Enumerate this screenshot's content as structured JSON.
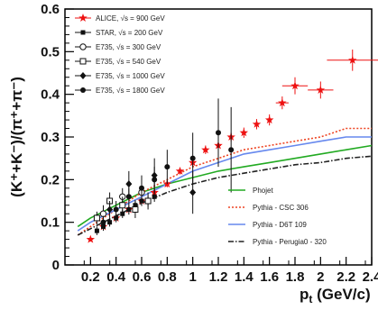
{
  "chart_data": {
    "type": "scatter",
    "xlabel": "p_t (GeV/c)",
    "ylabel": "(K⁺+K⁻)/(π⁺+π⁻)",
    "xlim": [
      0,
      2.4
    ],
    "ylim": [
      0,
      0.6
    ],
    "x_ticks": [
      0.2,
      0.4,
      0.6,
      0.8,
      1,
      1.2,
      1.4,
      1.6,
      1.8,
      2,
      2.2,
      2.4
    ],
    "x_tick_labels": [
      "0.2",
      "0.4",
      "0.6",
      "0.8",
      "1",
      "1.2",
      "1.4",
      "1.6",
      "1.8",
      "2",
      "2.2",
      "2.4"
    ],
    "y_ticks": [
      0,
      0.1,
      0.2,
      0.3,
      0.4,
      0.5,
      0.6
    ],
    "y_tick_labels": [
      "0",
      "0.1",
      "0.2",
      "0.3",
      "0.4",
      "0.5",
      "0.6"
    ],
    "legend_position": "top-left",
    "series": [
      {
        "name": "ALICE, √s = 900 GeV",
        "marker": "star",
        "color": "#ee1111",
        "x": [
          0.2,
          0.3,
          0.4,
          0.5,
          0.6,
          0.7,
          0.8,
          0.9,
          1.0,
          1.1,
          1.2,
          1.3,
          1.4,
          1.5,
          1.6,
          1.7,
          1.8,
          2.0,
          2.25
        ],
        "y": [
          0.06,
          0.09,
          0.11,
          0.13,
          0.15,
          0.17,
          0.19,
          0.22,
          0.24,
          0.27,
          0.28,
          0.3,
          0.31,
          0.33,
          0.34,
          0.38,
          0.42,
          0.41,
          0.48
        ],
        "xerr": [
          0.02,
          0.02,
          0.02,
          0.02,
          0.02,
          0.02,
          0.02,
          0.02,
          0.02,
          0.02,
          0.02,
          0.02,
          0.02,
          0.02,
          0.02,
          0.05,
          0.1,
          0.1,
          0.2
        ],
        "yerr": [
          0.005,
          0.005,
          0.006,
          0.006,
          0.007,
          0.007,
          0.008,
          0.008,
          0.01,
          0.01,
          0.01,
          0.01,
          0.012,
          0.012,
          0.013,
          0.015,
          0.02,
          0.02,
          0.025
        ]
      },
      {
        "name": "STAR, √s = 200 GeV",
        "marker": "filled-square",
        "color": "#111111",
        "x": [
          0.25,
          0.3,
          0.35,
          0.4,
          0.45,
          0.5,
          0.55,
          0.6,
          0.65,
          0.7
        ],
        "y": [
          0.08,
          0.09,
          0.1,
          0.11,
          0.12,
          0.13,
          0.14,
          0.15,
          0.15,
          0.16
        ],
        "yerr": [
          0.01,
          0.01,
          0.01,
          0.01,
          0.01,
          0.012,
          0.012,
          0.012,
          0.012,
          0.012
        ]
      },
      {
        "name": "E735, √s = 300 GeV",
        "marker": "open-circle",
        "color": "#111111",
        "x": [
          0.3,
          0.45,
          0.6
        ],
        "y": [
          0.12,
          0.16,
          0.17
        ],
        "yerr": [
          0.02,
          0.02,
          0.03
        ]
      },
      {
        "name": "E735, √s = 540 GeV",
        "marker": "open-square",
        "color": "#111111",
        "x": [
          0.25,
          0.35,
          0.45,
          0.55,
          0.65
        ],
        "y": [
          0.11,
          0.15,
          0.14,
          0.13,
          0.15
        ],
        "yerr": [
          0.015,
          0.02,
          0.02,
          0.02,
          0.02
        ]
      },
      {
        "name": "E735, √s = 1000 GeV",
        "marker": "diamond",
        "color": "#111111",
        "x": [
          0.35,
          0.5,
          0.7,
          1.0
        ],
        "y": [
          0.13,
          0.19,
          0.21,
          0.17
        ],
        "yerr": [
          0.02,
          0.03,
          0.04,
          0.05
        ]
      },
      {
        "name": "E735, √s = 1800 GeV",
        "marker": "filled-circle",
        "color": "#111111",
        "x": [
          0.3,
          0.4,
          0.5,
          0.6,
          0.7,
          0.8,
          1.0,
          1.2,
          1.3
        ],
        "y": [
          0.1,
          0.13,
          0.16,
          0.18,
          0.2,
          0.23,
          0.25,
          0.31,
          0.27
        ],
        "yerr": [
          0.015,
          0.02,
          0.02,
          0.03,
          0.03,
          0.04,
          0.06,
          0.08,
          0.1
        ]
      }
    ],
    "curves": [
      {
        "name": "Phojet",
        "style": "solid",
        "color": "#22aa22",
        "x": [
          0.1,
          0.2,
          0.3,
          0.4,
          0.5,
          0.6,
          0.8,
          1.0,
          1.2,
          1.4,
          1.6,
          1.8,
          2.0,
          2.2,
          2.4
        ],
        "y": [
          0.09,
          0.11,
          0.125,
          0.14,
          0.155,
          0.17,
          0.19,
          0.205,
          0.22,
          0.23,
          0.24,
          0.25,
          0.26,
          0.27,
          0.28
        ]
      },
      {
        "name": "Pythia - CSC 306",
        "style": "dotted",
        "color": "#ee4422",
        "x": [
          0.1,
          0.2,
          0.3,
          0.4,
          0.5,
          0.6,
          0.8,
          1.0,
          1.2,
          1.4,
          1.6,
          1.8,
          2.0,
          2.2,
          2.4
        ],
        "y": [
          0.07,
          0.09,
          0.11,
          0.13,
          0.15,
          0.17,
          0.2,
          0.23,
          0.25,
          0.27,
          0.28,
          0.29,
          0.3,
          0.32,
          0.32
        ]
      },
      {
        "name": "Pythia - D6T 109",
        "style": "solid",
        "color": "#6688ee",
        "x": [
          0.1,
          0.2,
          0.3,
          0.4,
          0.5,
          0.6,
          0.8,
          1.0,
          1.2,
          1.4,
          1.6,
          1.8,
          2.0,
          2.2,
          2.4
        ],
        "y": [
          0.08,
          0.1,
          0.115,
          0.13,
          0.145,
          0.16,
          0.19,
          0.22,
          0.24,
          0.26,
          0.27,
          0.28,
          0.29,
          0.3,
          0.3
        ]
      },
      {
        "name": "Pythia - Perugia0 - 320",
        "style": "dashdot",
        "color": "#222222",
        "x": [
          0.1,
          0.2,
          0.3,
          0.4,
          0.5,
          0.6,
          0.8,
          1.0,
          1.2,
          1.4,
          1.6,
          1.8,
          2.0,
          2.2,
          2.4
        ],
        "y": [
          0.07,
          0.085,
          0.1,
          0.115,
          0.13,
          0.145,
          0.17,
          0.19,
          0.205,
          0.215,
          0.225,
          0.235,
          0.24,
          0.25,
          0.255
        ]
      }
    ]
  }
}
